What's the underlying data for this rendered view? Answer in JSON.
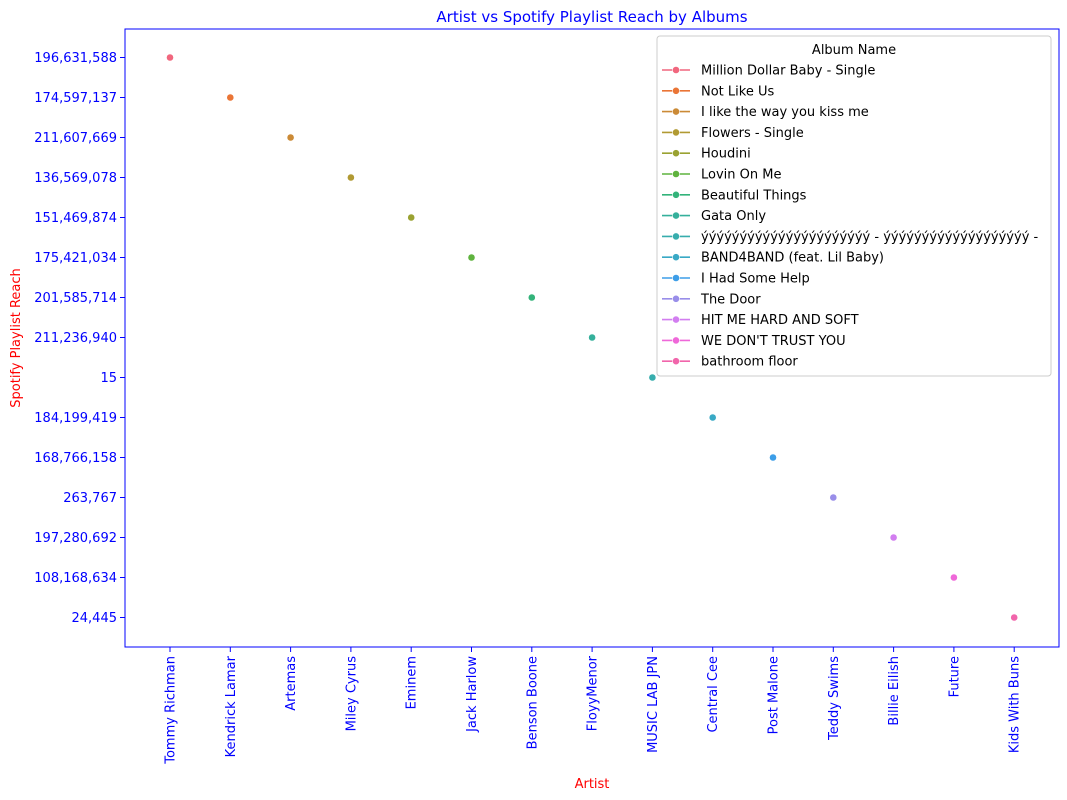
{
  "chart_data": {
    "type": "scatter",
    "title": "Artist vs Spotify Playlist Reach by Albums",
    "xlabel": "Artist",
    "ylabel": "Spotify Playlist Reach",
    "categories": [
      "Tommy Richman",
      "Kendrick Lamar",
      "Artemas",
      "Miley Cyrus",
      "Eminem",
      "Jack Harlow",
      "Benson Boone",
      "FloyyMenor",
      "MUSIC LAB JPN",
      "Central Cee",
      "Post Malone",
      "Teddy Swims",
      "Billie Eilish",
      "Future",
      "Kids With Buns"
    ],
    "y_categories": [
      "196,631,588",
      "174,597,137",
      "211,607,669",
      "136,569,078",
      "151,469,874",
      "175,421,034",
      "201,585,714",
      "211,236,940",
      "15",
      "184,199,419",
      "168,766,158",
      "263,767",
      "197,280,692",
      "108,168,634",
      "24,445"
    ],
    "legend_title": "Album Name",
    "legend_placement": "top-right",
    "grid": false,
    "series": [
      {
        "name": "Million Dollar Baby - Single",
        "x": "Tommy Richman",
        "y": "196,631,588",
        "color": "#f1677e"
      },
      {
        "name": "Not Like Us",
        "x": "Kendrick Lamar",
        "y": "174,597,137",
        "color": "#ea7536"
      },
      {
        "name": "I like the way you kiss me",
        "x": "Artemas",
        "y": "211,607,669",
        "color": "#cb8a36"
      },
      {
        "name": "Flowers - Single",
        "x": "Miley Cyrus",
        "y": "136,569,078",
        "color": "#b19a33"
      },
      {
        "name": "Houdini",
        "x": "Eminem",
        "y": "151,469,874",
        "color": "#9aa232"
      },
      {
        "name": "Lovin On Me",
        "x": "Jack Harlow",
        "y": "175,421,034",
        "color": "#5fb33e"
      },
      {
        "name": "Beautiful Things",
        "x": "Benson Boone",
        "y": "201,585,714",
        "color": "#33b37a"
      },
      {
        "name": "Gata Only",
        "x": "FloyyMenor",
        "y": "211,236,940",
        "color": "#35b09b"
      },
      {
        "name": "ýýýýýýýýýýýýýýýýýýýýýý - ýýýýýýýýýýýýýýýýýýý -",
        "x": "MUSIC LAB JPN",
        "y": "15",
        "color": "#37adad"
      },
      {
        "name": "BAND4BAND (feat. Lil Baby)",
        "x": "Central Cee",
        "y": "184,199,419",
        "color": "#39a9c5"
      },
      {
        "name": "I Had Some Help",
        "x": "Post Malone",
        "y": "168,766,158",
        "color": "#3d9ee8"
      },
      {
        "name": "The Door",
        "x": "Teddy Swims",
        "y": "263,767",
        "color": "#998ee9"
      },
      {
        "name": "HIT ME HARD AND SOFT",
        "x": "Billie Eilish",
        "y": "197,280,692",
        "color": "#d27ef0"
      },
      {
        "name": "WE DON'T TRUST YOU",
        "x": "Future",
        "y": "108,168,634",
        "color": "#ef68d9"
      },
      {
        "name": "bathroom floor",
        "x": "Kids With Buns",
        "y": "24,445",
        "color": "#f165ab"
      }
    ],
    "colors": {
      "text_title": "#0000ff",
      "text_ticks": "#0000ff",
      "text_axis_labels": "#ff0000",
      "frame": "#0000ff"
    }
  }
}
